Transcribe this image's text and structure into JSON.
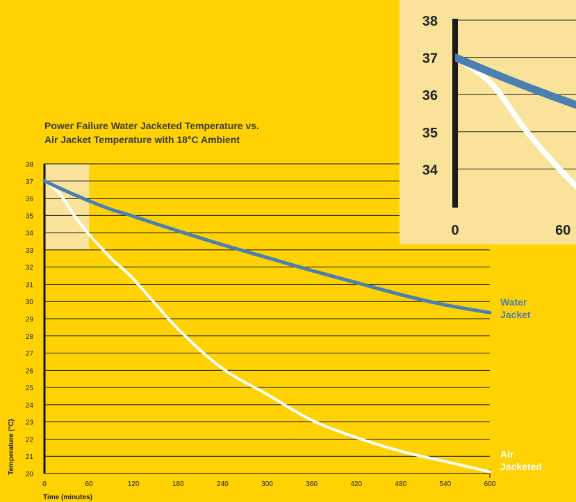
{
  "chart_data": {
    "type": "line",
    "title": [
      "Power Failure Water Jacketed Temperature vs.",
      "Air Jacket Temperature with 18°C Ambient"
    ],
    "xlabel": "Time (minutes)",
    "ylabel": "Temperature (°C)",
    "xlim": [
      0,
      600
    ],
    "ylim": [
      20,
      38
    ],
    "xticks": [
      "0",
      "60",
      "120",
      "180",
      "240",
      "300",
      "360",
      "420",
      "480",
      "540",
      "600"
    ],
    "yticks": [
      "20",
      "21",
      "22",
      "23",
      "24",
      "25",
      "26",
      "27",
      "28",
      "29",
      "30",
      "31",
      "32",
      "33",
      "34",
      "35",
      "36",
      "37",
      "38"
    ],
    "grid": "horizontal",
    "highlight_region": {
      "x": [
        0,
        60
      ],
      "y": [
        33,
        38
      ]
    },
    "series": [
      {
        "name": "Water Jacket",
        "label_lines": [
          "Water",
          "Jacket"
        ],
        "color": "#4A7FB0",
        "x": [
          0,
          30,
          60,
          90,
          120,
          180,
          240,
          300,
          360,
          420,
          480,
          540,
          600
        ],
        "y": [
          37.0,
          36.4,
          35.85,
          35.35,
          34.95,
          34.1,
          33.3,
          32.55,
          31.8,
          31.1,
          30.4,
          29.8,
          29.35
        ]
      },
      {
        "name": "Air Jacketed",
        "label_lines": [
          "Air",
          "Jacketed"
        ],
        "color": "#FFFFFF",
        "x": [
          0,
          20,
          40,
          60,
          90,
          120,
          180,
          240,
          300,
          360,
          420,
          480,
          540,
          600
        ],
        "y": [
          37.0,
          36.3,
          35.0,
          33.9,
          32.5,
          31.3,
          28.4,
          26.1,
          24.6,
          23.1,
          22.1,
          21.3,
          20.7,
          20.1
        ]
      }
    ],
    "inset": {
      "description_free": true,
      "xticks": [
        "0",
        "60"
      ],
      "yticks": [
        "34",
        "35",
        "36",
        "37",
        "38"
      ],
      "xlim": [
        0,
        80
      ],
      "ylim": [
        33,
        38
      ]
    }
  },
  "colors": {
    "background": "#FFD200",
    "highlight": "#F9E39A",
    "grid": "#111111",
    "water": "#4A7FB0",
    "air": "#FFFFFF"
  }
}
